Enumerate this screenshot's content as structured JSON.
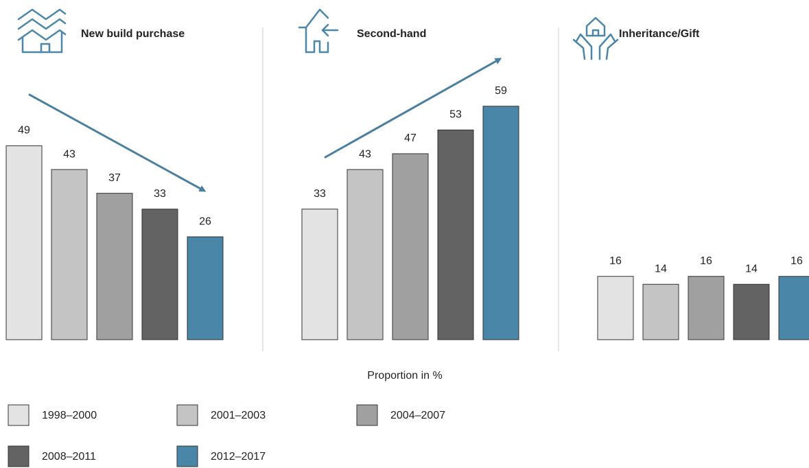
{
  "chart_data": [
    {
      "type": "bar",
      "title": "New build purchase",
      "values": [
        49,
        43,
        37,
        33,
        26
      ],
      "ylim": [
        0,
        60
      ],
      "arrow": true
    },
    {
      "type": "bar",
      "title": "Second-hand",
      "values": [
        33,
        43,
        47,
        53,
        59
      ],
      "ylim": [
        0,
        60
      ],
      "arrow": true
    },
    {
      "type": "bar",
      "title": "Inheritance/Gift",
      "values": [
        16,
        14,
        16,
        14,
        16
      ],
      "ylim": [
        0,
        60
      ],
      "arrow": false
    }
  ],
  "axis_label": "Proportion in %",
  "legend": [
    {
      "name": "1998–2000",
      "color": "#e3e3e3"
    },
    {
      "name": "2001–2003",
      "color": "#c4c4c4"
    },
    {
      "name": "2004–2007",
      "color": "#a0a0a0"
    },
    {
      "name": "2008–2011",
      "color": "#636363"
    },
    {
      "name": "2012–2017",
      "color": "#4a86a8"
    }
  ]
}
